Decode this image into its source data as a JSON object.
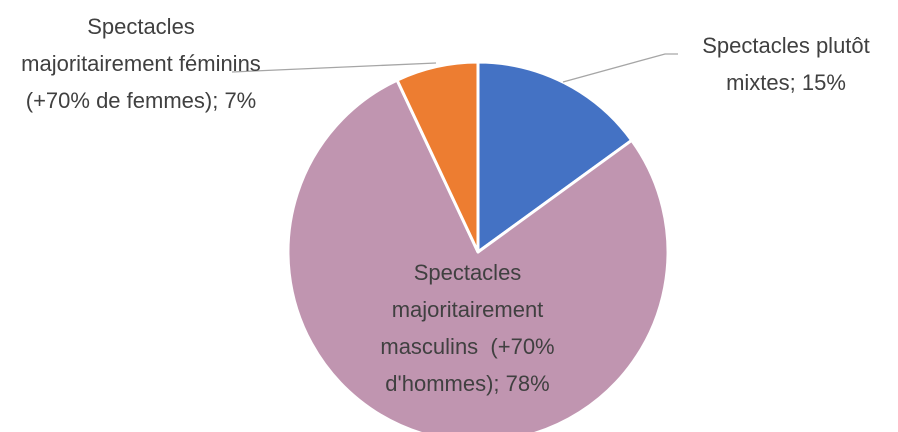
{
  "chart_data": {
    "type": "pie",
    "categories": [
      "Spectacles plutôt mixtes; 15%",
      "Spectacles majoritairement masculins  (+70% d'hommes); 78%",
      "Spectacles majoritairement féminins (+70% de femmes); 7%"
    ],
    "values": [
      15,
      78,
      7
    ],
    "colors": [
      "#4472c4",
      "#c095b0",
      "#ed7d31"
    ]
  }
}
